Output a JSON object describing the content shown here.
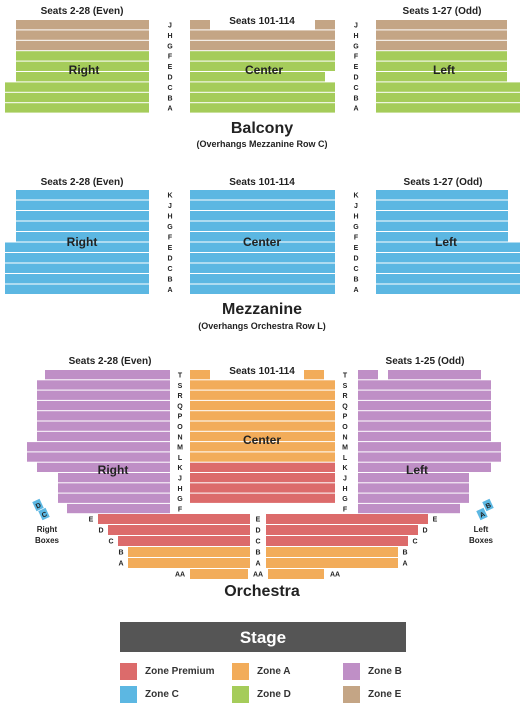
{
  "colors": {
    "zone_premium": "#dc6b6b",
    "zone_a": "#f2ac5a",
    "zone_b": "#bf8fc6",
    "zone_c": "#5cb7e2",
    "zone_d": "#a5cc5a",
    "zone_e": "#c4a585",
    "text": "#222222",
    "stage": "#555555"
  },
  "balcony": {
    "title": "Balcony",
    "note": "(Overhangs Mezzanine Row C)",
    "left_header": "Seats 2-28 (Even)",
    "center_header": "Seats 101-114",
    "right_header": "Seats 1-27 (Odd)",
    "section_right": "Right",
    "section_center": "Center",
    "section_left": "Left",
    "rows": [
      "J",
      "H",
      "G",
      "F",
      "E",
      "D",
      "C",
      "B",
      "A"
    ],
    "row_zones": [
      "zone_e",
      "zone_e",
      "zone_e",
      "zone_d",
      "zone_d",
      "zone_d",
      "zone_d",
      "zone_d",
      "zone_d"
    ]
  },
  "mezzanine": {
    "title": "Mezzanine",
    "note": "(Overhangs Orchestra Row L)",
    "left_header": "Seats 2-28 (Even)",
    "center_header": "Seats 101-114",
    "right_header": "Seats 1-27 (Odd)",
    "section_right": "Right",
    "section_center": "Center",
    "section_left": "Left",
    "rows": [
      "K",
      "J",
      "H",
      "G",
      "F",
      "E",
      "D",
      "C",
      "B",
      "A"
    ],
    "zone": "zone_c"
  },
  "orchestra": {
    "title": "Orchestra",
    "left_header": "Seats 2-28 (Even)",
    "center_header": "Seats 101-114",
    "right_header": "Seats 1-25 (Odd)",
    "section_right": "Right",
    "section_center": "Center",
    "section_left": "Left",
    "rows": [
      "T",
      "S",
      "R",
      "Q",
      "P",
      "O",
      "N",
      "M",
      "L",
      "K",
      "J",
      "H",
      "G",
      "F"
    ],
    "front_rows": [
      "E",
      "D",
      "C",
      "B",
      "A",
      "AA"
    ],
    "right_boxes_label": [
      "Right",
      "Boxes"
    ],
    "left_boxes_label": [
      "Left",
      "Boxes"
    ],
    "right_box_letters": [
      "D",
      "C"
    ],
    "left_box_letters": [
      "B",
      "A"
    ]
  },
  "stage": {
    "label": "Stage"
  },
  "legend": [
    {
      "label": "Zone Premium",
      "color": "zone_premium"
    },
    {
      "label": "Zone A",
      "color": "zone_a"
    },
    {
      "label": "Zone B",
      "color": "zone_b"
    },
    {
      "label": "Zone C",
      "color": "zone_c"
    },
    {
      "label": "Zone D",
      "color": "zone_d"
    },
    {
      "label": "Zone E",
      "color": "zone_e"
    }
  ]
}
